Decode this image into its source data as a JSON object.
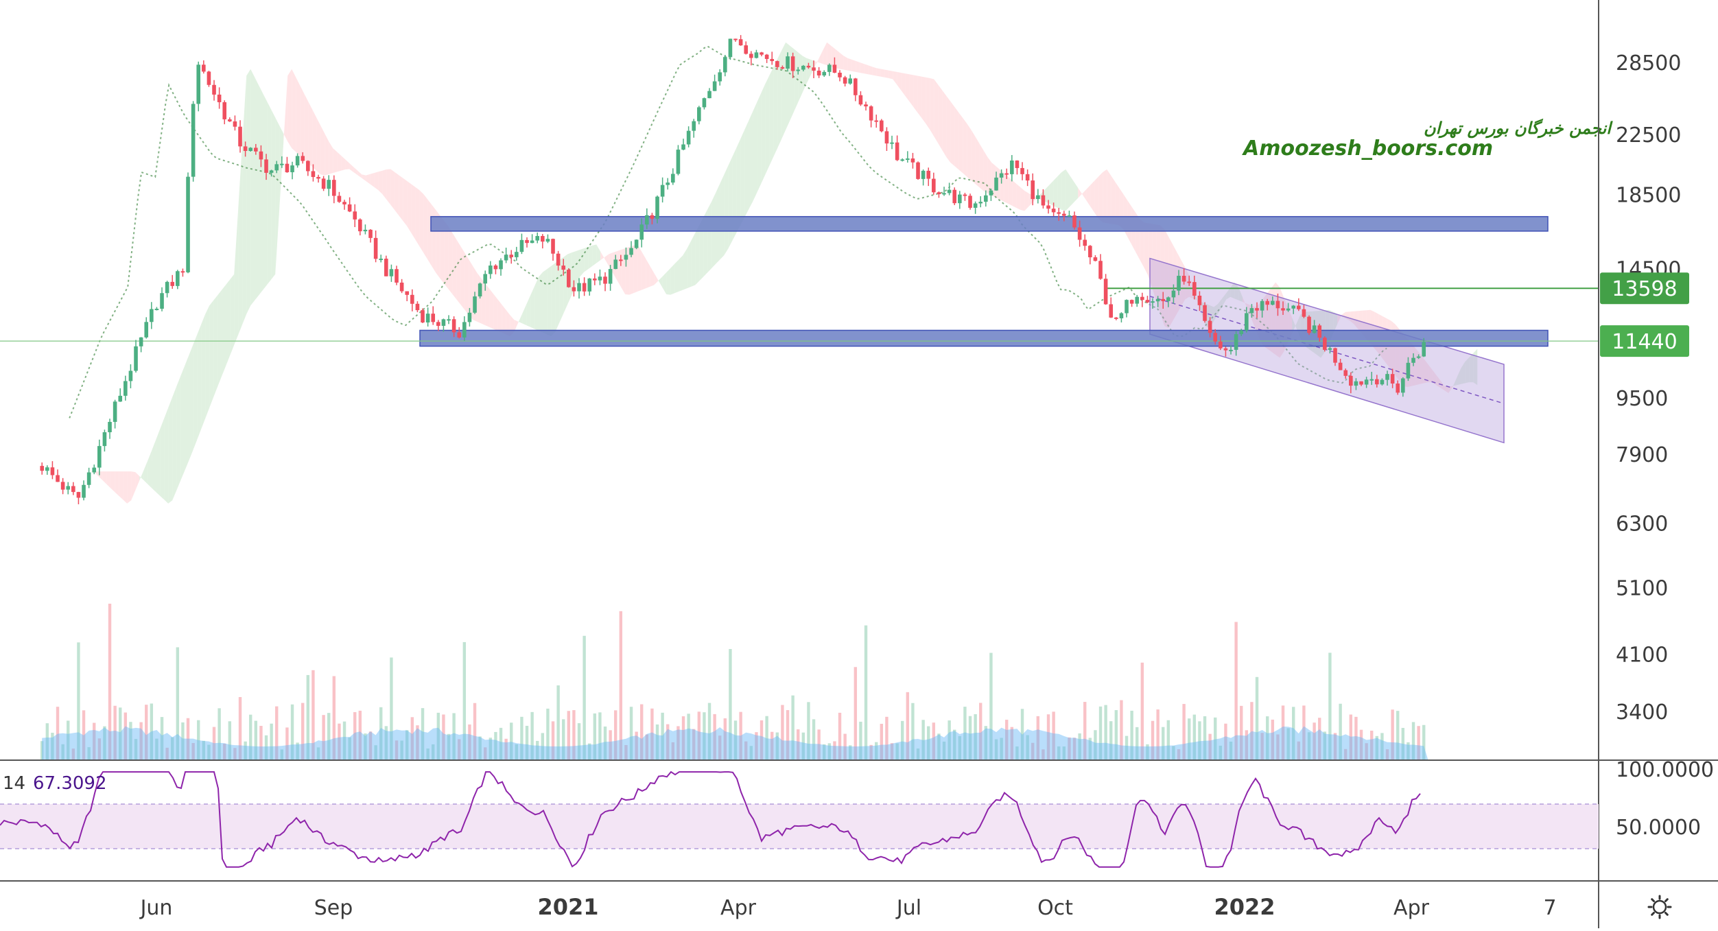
{
  "watermark": {
    "persian": "انجمن خبرگان بورس تهران",
    "site": "Amoozesh_boors.com"
  },
  "price_tags": [
    {
      "label": "13598",
      "color": "#43a047"
    },
    {
      "label": "11440",
      "color": "#4caf50"
    }
  ],
  "rsi": {
    "period": "14",
    "value": "67.3092",
    "axis_labels": [
      "100.0000",
      "50.0000"
    ],
    "line_color": "#8e24aa",
    "band_color": "#e1bee7"
  },
  "time_axis": [
    {
      "label": "Jun",
      "bold": false
    },
    {
      "label": "Sep",
      "bold": false
    },
    {
      "label": "2021",
      "bold": true
    },
    {
      "label": "Apr",
      "bold": false
    },
    {
      "label": "Jul",
      "bold": false
    },
    {
      "label": "Oct",
      "bold": false
    },
    {
      "label": "2022",
      "bold": true
    },
    {
      "label": "Apr",
      "bold": false
    },
    {
      "label": "7",
      "bold": false
    }
  ],
  "settings_icon": "gear-icon",
  "colors": {
    "up": "#4caf82",
    "down": "#ef4f5f",
    "zone": "#6b7fc4",
    "channel": "#b39ddb",
    "cloud_green": "#c8e6c9",
    "cloud_red": "#ffcdd2",
    "volume_area": "#64b5f6"
  },
  "chart_data": {
    "type": "candlestick",
    "y_scale": "log",
    "y_ticks": [
      28500,
      22500,
      18500,
      14500,
      11440,
      9500,
      7900,
      6300,
      5100,
      4100,
      3400
    ],
    "horizontal_lines": [
      13598,
      11440
    ],
    "zones": [
      {
        "name": "upper",
        "low": 16400,
        "high": 17200
      },
      {
        "name": "lower",
        "low": 11250,
        "high": 11850
      }
    ],
    "series": [
      {
        "name": "close",
        "points": [
          [
            "2020-04-01",
            7600
          ],
          [
            "2020-04-10",
            7200
          ],
          [
            "2020-04-20",
            6800
          ],
          [
            "2020-05-01",
            8000
          ],
          [
            "2020-05-15",
            10000
          ],
          [
            "2020-06-01",
            13000
          ],
          [
            "2020-06-15",
            14500
          ],
          [
            "2020-06-22",
            29000
          ],
          [
            "2020-07-01",
            26000
          ],
          [
            "2020-07-15",
            22000
          ],
          [
            "2020-08-01",
            20000
          ],
          [
            "2020-08-15",
            20500
          ],
          [
            "2020-09-01",
            19000
          ],
          [
            "2020-09-15",
            17000
          ],
          [
            "2020-10-01",
            14500
          ],
          [
            "2020-10-20",
            12500
          ],
          [
            "2020-11-10",
            11800
          ],
          [
            "2020-11-25",
            14500
          ],
          [
            "2020-12-10",
            15500
          ],
          [
            "2020-12-25",
            16000
          ],
          [
            "2021-01-10",
            13500
          ],
          [
            "2021-01-25",
            14000
          ],
          [
            "2021-02-10",
            15500
          ],
          [
            "2021-02-25",
            18500
          ],
          [
            "2021-03-10",
            22000
          ],
          [
            "2021-03-25",
            27000
          ],
          [
            "2021-04-05",
            31000
          ],
          [
            "2021-04-15",
            29500
          ],
          [
            "2021-05-01",
            28500
          ],
          [
            "2021-06-01",
            27500
          ],
          [
            "2021-06-20",
            23500
          ],
          [
            "2021-07-01",
            21000
          ],
          [
            "2021-07-20",
            19000
          ],
          [
            "2021-08-10",
            17800
          ],
          [
            "2021-09-01",
            20500
          ],
          [
            "2021-09-20",
            17200
          ],
          [
            "2021-10-01",
            17000
          ],
          [
            "2021-10-15",
            14500
          ],
          [
            "2021-10-25",
            12000
          ],
          [
            "2021-11-05",
            13500
          ],
          [
            "2021-11-20",
            13000
          ],
          [
            "2021-12-01",
            14200
          ],
          [
            "2021-12-15",
            11500
          ],
          [
            "2021-12-25",
            11000
          ],
          [
            "2022-01-05",
            12800
          ],
          [
            "2022-01-20",
            12900
          ],
          [
            "2022-02-01",
            12400
          ],
          [
            "2022-02-15",
            11200
          ],
          [
            "2022-03-01",
            10000
          ],
          [
            "2022-03-15",
            10200
          ],
          [
            "2022-03-25",
            9800
          ],
          [
            "2022-04-01",
            10800
          ],
          [
            "2022-04-10",
            11440
          ]
        ]
      }
    ]
  }
}
